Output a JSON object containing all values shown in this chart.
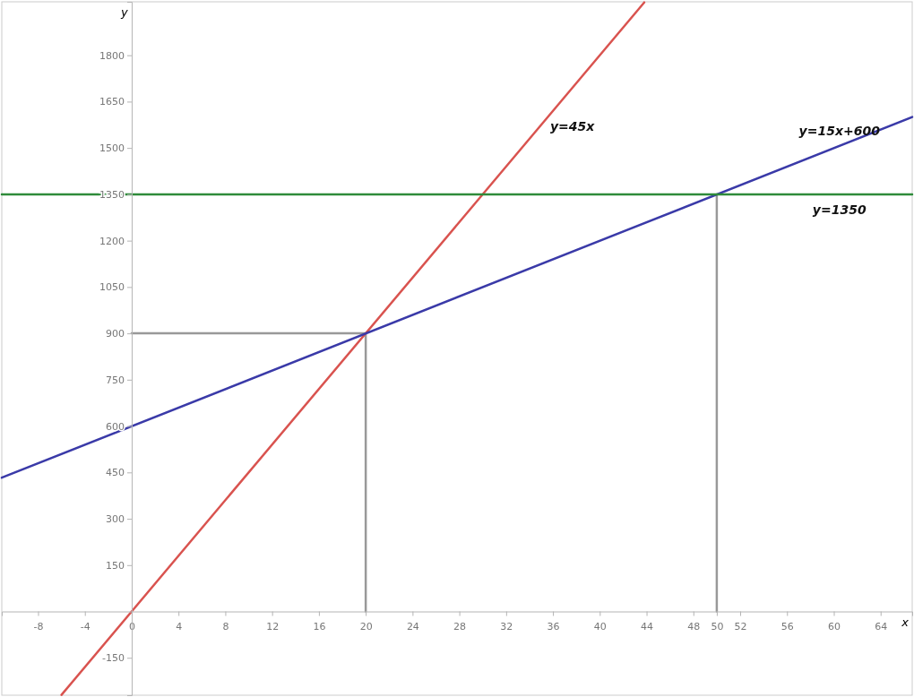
{
  "chart_data": {
    "type": "line",
    "xlabel": "x",
    "ylabel": "y",
    "xlim": [
      -11.1,
      66.7
    ],
    "ylim": [
      -271,
      1973
    ],
    "xticks": [
      -8,
      -4,
      0,
      4,
      8,
      12,
      16,
      20,
      24,
      28,
      32,
      36,
      40,
      44,
      48,
      50,
      52,
      56,
      60,
      64
    ],
    "yticks": [
      -150,
      150,
      300,
      450,
      600,
      750,
      900,
      1050,
      1200,
      1350,
      1500,
      1650,
      1800
    ],
    "grid": false,
    "marker": "none",
    "line_style": "solid",
    "series": [
      {
        "color": "#999999",
        "x": [
          20,
          20
        ],
        "values": [
          0,
          900
        ]
      },
      {
        "color": "#999999",
        "x": [
          0,
          20
        ],
        "values": [
          900,
          900
        ]
      },
      {
        "color": "#999999",
        "x": [
          50,
          50
        ],
        "values": [
          0,
          1350
        ]
      },
      {
        "name": "y=45x",
        "color": "#d9534f",
        "x": [
          -6,
          43.8
        ],
        "values": [
          -270,
          1971
        ]
      },
      {
        "name": "y=15x+600",
        "color": "#3a3aa8",
        "x": [
          -11.1,
          66.7
        ],
        "values": [
          433,
          1600
        ]
      },
      {
        "name": "y=1350",
        "color": "#2e8b3a",
        "x": [
          -11.1,
          66.7
        ],
        "values": [
          1350,
          1350
        ]
      }
    ]
  }
}
